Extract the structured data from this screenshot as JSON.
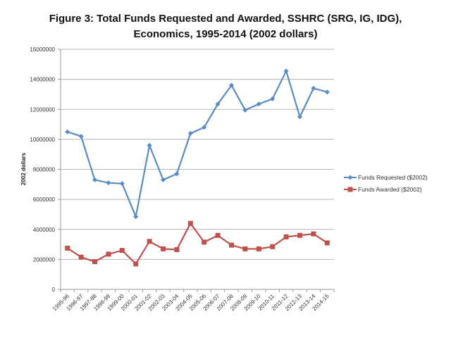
{
  "chart_data": {
    "type": "line",
    "title_line1": "Figure 3: Total Funds Requested and Awarded, SSHRC (SRG, IG, IDG),",
    "title_line2": "Economics, 1995-2014 (2002 dollars)",
    "xlabel": "",
    "ylabel": "2002 dollars",
    "ylim": [
      0,
      16000000
    ],
    "yticks": [
      "0",
      "2000000",
      "4000000",
      "6000000",
      "8000000",
      "10000000",
      "12000000",
      "14000000",
      "16000000"
    ],
    "grid": true,
    "legend_position": "right",
    "categories": [
      "1995-96",
      "1996-97",
      "1997-98",
      "1998-99",
      "1999-00",
      "2000-01",
      "2001-02",
      "2002-03",
      "2003-04",
      "2004-05",
      "2005-06",
      "2006-07",
      "2007-08",
      "2008-09",
      "2009-10",
      "2010-11",
      "2011-12",
      "2012-13",
      "2013-14",
      "2014-15"
    ],
    "series": [
      {
        "name": "Funds Requested ($2002)",
        "color": "#5b8bc4",
        "marker": "diamond",
        "values": [
          10500000,
          10200000,
          7300000,
          7100000,
          7050000,
          4850000,
          9600000,
          7300000,
          7700000,
          10400000,
          10800000,
          12350000,
          13600000,
          11950000,
          12350000,
          12700000,
          14550000,
          11500000,
          13400000,
          13150000
        ]
      },
      {
        "name": "Funds Awarded ($2002)",
        "color": "#c0504d",
        "marker": "square",
        "values": [
          2750000,
          2150000,
          1850000,
          2350000,
          2600000,
          1700000,
          3200000,
          2700000,
          2650000,
          4400000,
          3150000,
          3600000,
          2950000,
          2700000,
          2700000,
          2850000,
          3500000,
          3600000,
          3700000,
          3100000
        ]
      }
    ]
  }
}
